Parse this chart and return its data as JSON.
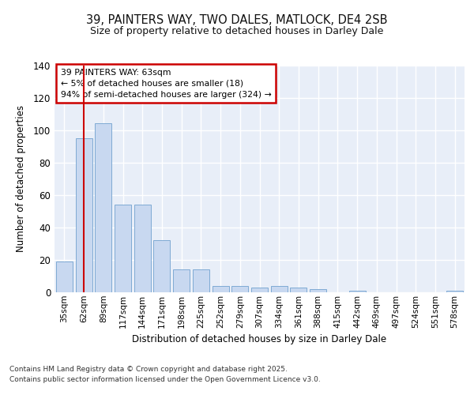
{
  "title_line1": "39, PAINTERS WAY, TWO DALES, MATLOCK, DE4 2SB",
  "title_line2": "Size of property relative to detached houses in Darley Dale",
  "xlabel": "Distribution of detached houses by size in Darley Dale",
  "ylabel": "Number of detached properties",
  "bar_labels": [
    "35sqm",
    "62sqm",
    "89sqm",
    "117sqm",
    "144sqm",
    "171sqm",
    "198sqm",
    "225sqm",
    "252sqm",
    "279sqm",
    "307sqm",
    "334sqm",
    "361sqm",
    "388sqm",
    "415sqm",
    "442sqm",
    "469sqm",
    "497sqm",
    "524sqm",
    "551sqm",
    "578sqm"
  ],
  "bar_values": [
    19,
    95,
    104,
    54,
    54,
    32,
    14,
    14,
    4,
    4,
    3,
    4,
    3,
    2,
    0,
    1,
    0,
    0,
    0,
    0,
    1
  ],
  "bar_color": "#c8d8f0",
  "bar_edgecolor": "#7faad4",
  "background_color": "#e8eef8",
  "grid_color": "#ffffff",
  "annotation_title": "39 PAINTERS WAY: 63sqm",
  "annotation_line2": "← 5% of detached houses are smaller (18)",
  "annotation_line3": "94% of semi-detached houses are larger (324) →",
  "annotation_box_facecolor": "#ffffff",
  "annotation_box_edgecolor": "#cc0000",
  "vline_color": "#cc0000",
  "vline_x_index": 1,
  "ylim": [
    0,
    140
  ],
  "yticks": [
    0,
    20,
    40,
    60,
    80,
    100,
    120,
    140
  ],
  "footer_line1": "Contains HM Land Registry data © Crown copyright and database right 2025.",
  "footer_line2": "Contains public sector information licensed under the Open Government Licence v3.0."
}
